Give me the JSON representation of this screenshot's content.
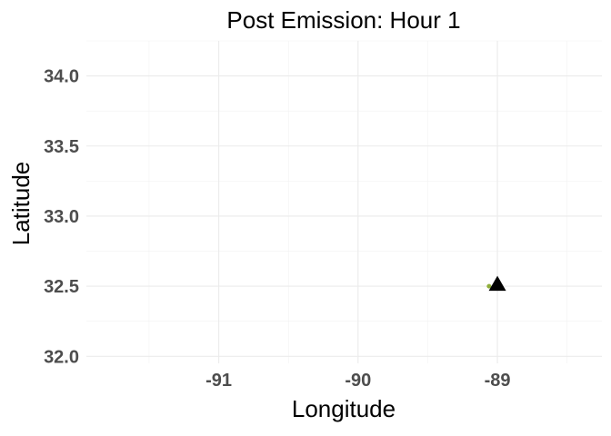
{
  "chart_data": {
    "type": "scatter",
    "title": "Post Emission: Hour 1",
    "xlabel": "Longitude",
    "ylabel": "Latitude",
    "xlim": [
      -91.95,
      -88.25
    ],
    "ylim": [
      31.95,
      34.25
    ],
    "x_ticks": [
      -91,
      -90,
      -89
    ],
    "x_tick_labels": [
      "-91",
      "-90",
      "-89"
    ],
    "y_ticks": [
      32.0,
      32.5,
      33.0,
      33.5,
      34.0
    ],
    "y_tick_labels": [
      "32.0",
      "32.5",
      "33.0",
      "33.5",
      "34.0"
    ],
    "grid": true,
    "legend": "none",
    "series": [
      {
        "marker": "circle",
        "color": "#8fae3a",
        "points": [
          {
            "x": -89.06,
            "y": 32.5
          }
        ]
      },
      {
        "marker": "triangle",
        "color": "#000000",
        "points": [
          {
            "x": -89.0,
            "y": 32.51
          }
        ]
      }
    ]
  }
}
